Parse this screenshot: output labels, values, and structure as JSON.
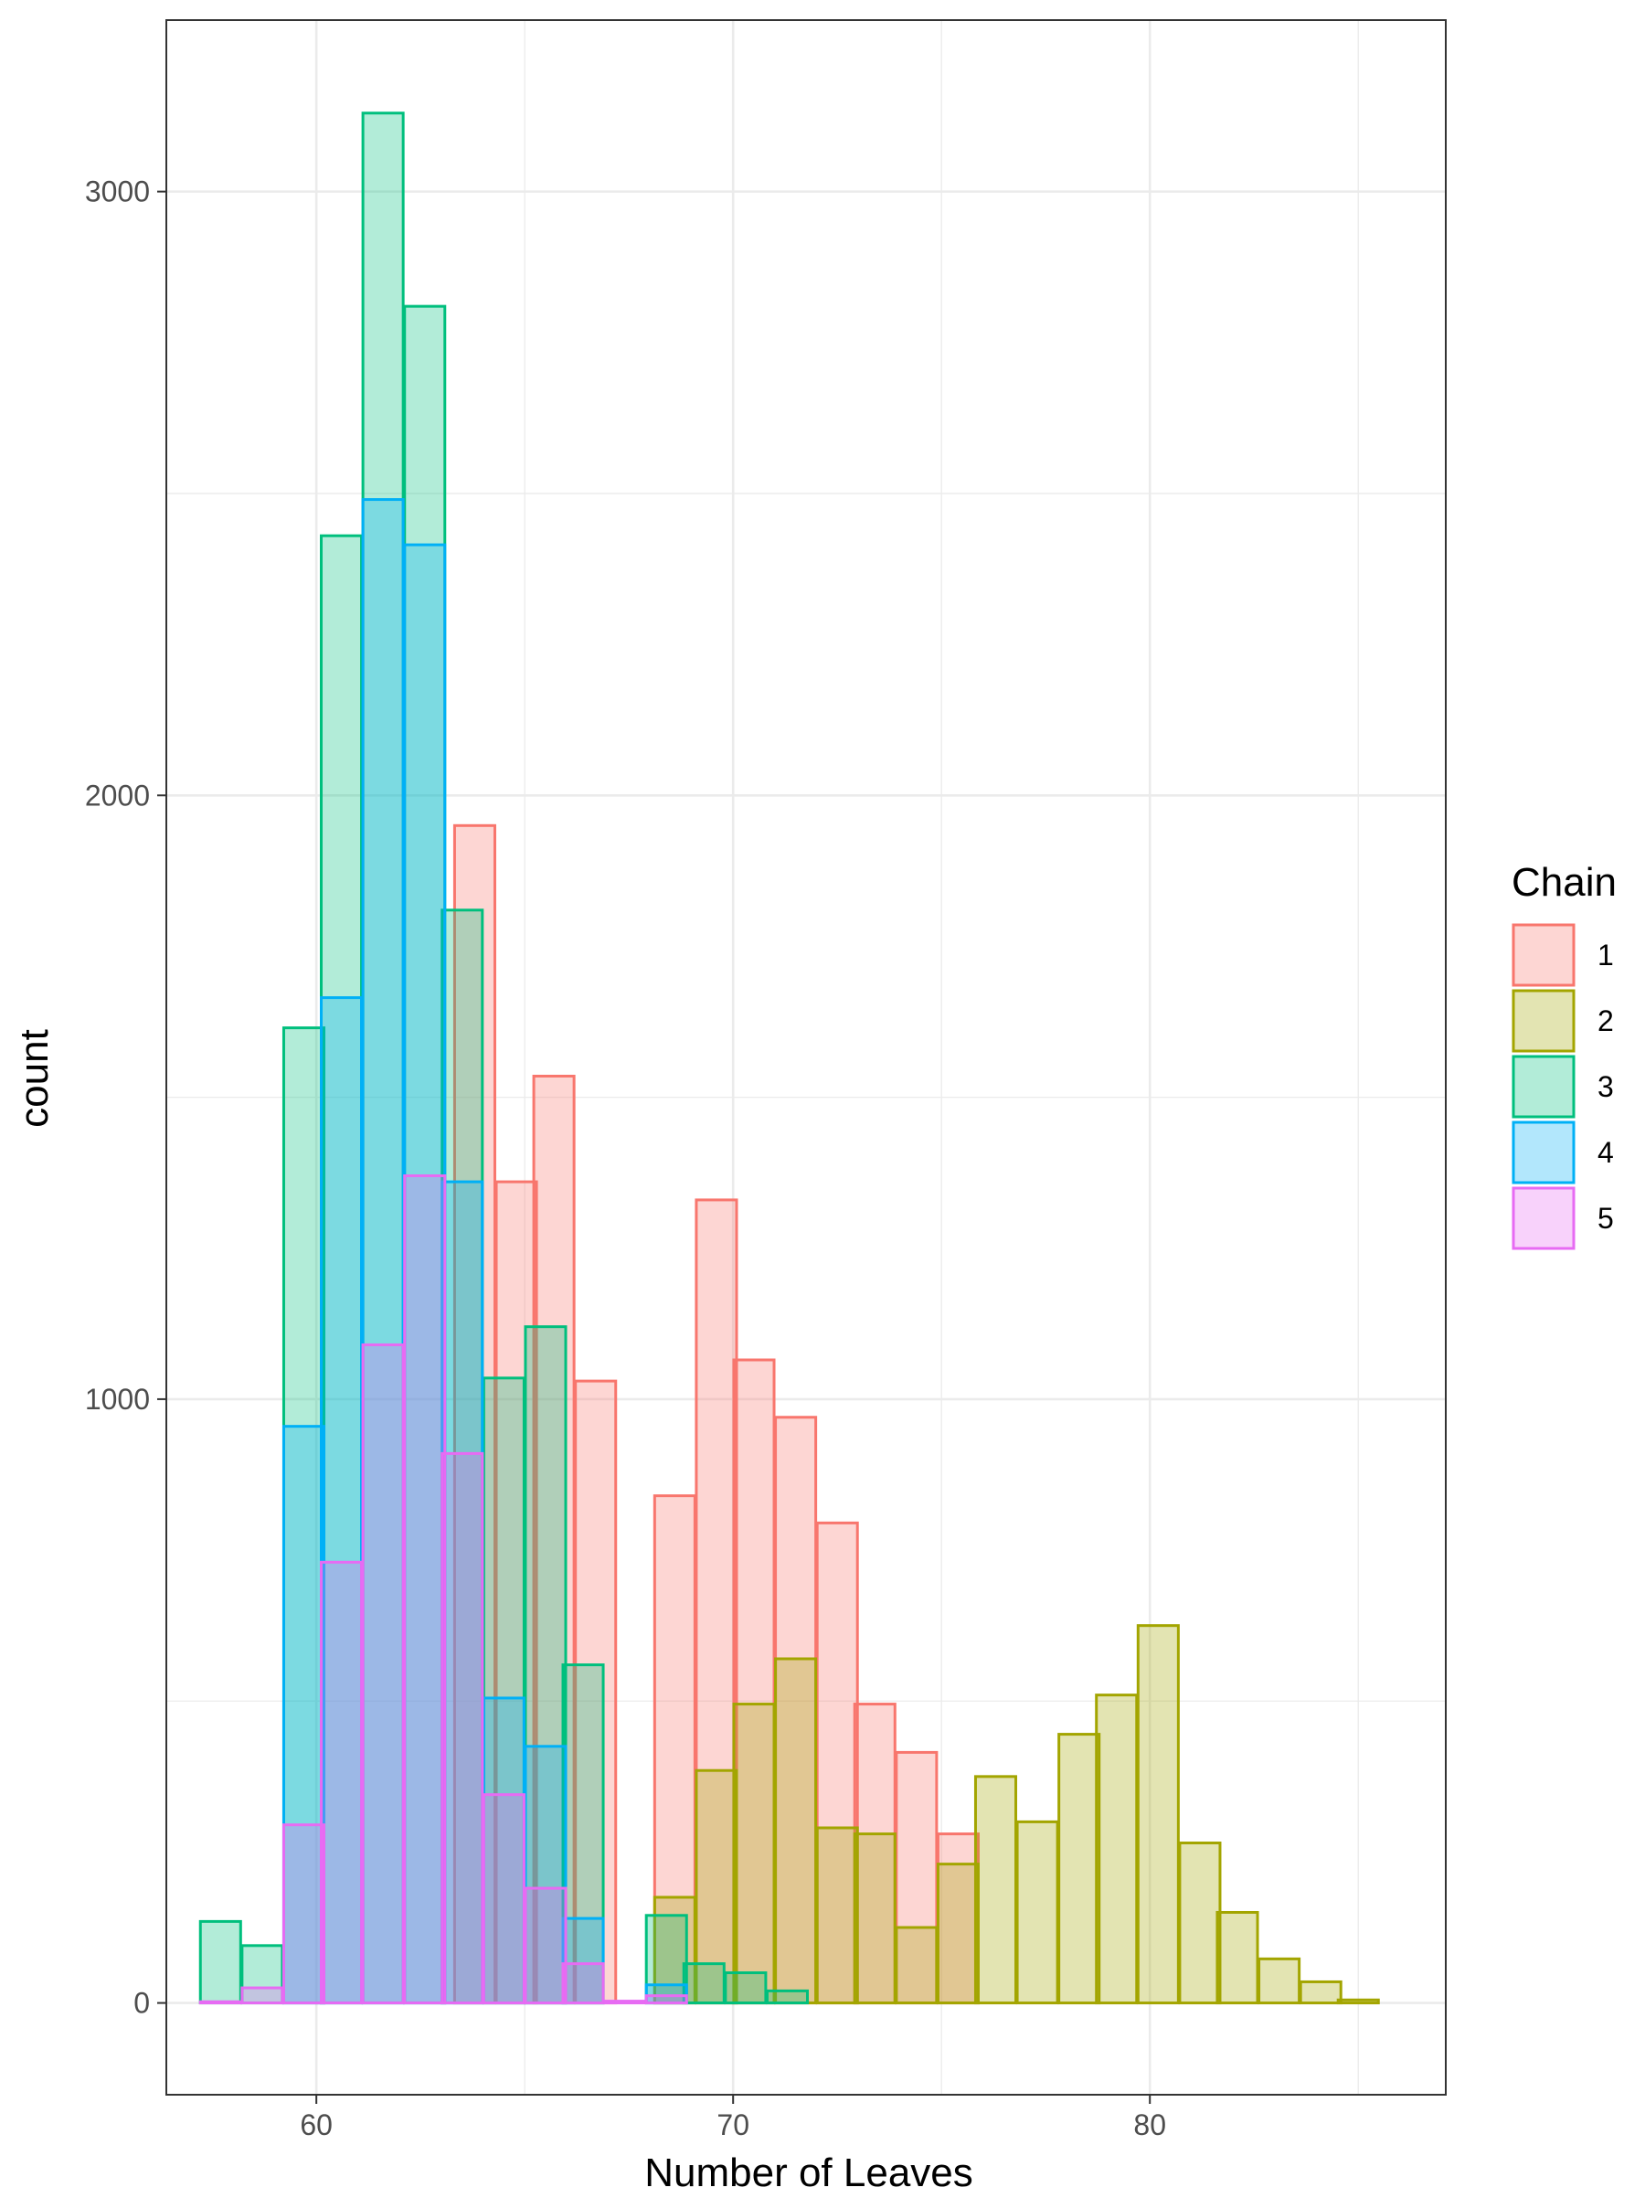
{
  "chart_data": {
    "type": "bar",
    "stacking": "overlapping (position identity, semi-transparent fill)",
    "xlabel": "Number of Leaves",
    "ylabel": "count",
    "legend_title": "Chain",
    "legend_position": "right",
    "grid": true,
    "theme": "bw",
    "bin_width": 0.966,
    "xlim": [
      56.4,
      87.1
    ],
    "ylim": [
      -152,
      3284
    ],
    "x_ticks": [
      60,
      70,
      80
    ],
    "y_ticks": [
      0,
      1000,
      2000,
      3000
    ],
    "series": [
      {
        "name": "1",
        "color": "#F8766D",
        "fill": "rgba(248,118,109,0.3)",
        "bins": [
          {
            "x": 63.8,
            "y": 1950
          },
          {
            "x": 64.8,
            "y": 1360
          },
          {
            "x": 65.7,
            "y": 1535
          },
          {
            "x": 66.7,
            "y": 1030
          },
          {
            "x": 68.6,
            "y": 840
          },
          {
            "x": 69.6,
            "y": 1330
          },
          {
            "x": 70.5,
            "y": 1065
          },
          {
            "x": 71.5,
            "y": 970
          },
          {
            "x": 72.5,
            "y": 795
          },
          {
            "x": 73.4,
            "y": 495
          },
          {
            "x": 74.4,
            "y": 415
          },
          {
            "x": 75.4,
            "y": 280
          }
        ]
      },
      {
        "name": "2",
        "color": "#A3A500",
        "fill": "rgba(163,165,0,0.3)",
        "bins": [
          {
            "x": 68.6,
            "y": 175
          },
          {
            "x": 69.6,
            "y": 385
          },
          {
            "x": 70.5,
            "y": 495
          },
          {
            "x": 71.5,
            "y": 570
          },
          {
            "x": 72.5,
            "y": 290
          },
          {
            "x": 73.4,
            "y": 280
          },
          {
            "x": 74.4,
            "y": 125
          },
          {
            "x": 75.4,
            "y": 230
          },
          {
            "x": 76.3,
            "y": 375
          },
          {
            "x": 77.3,
            "y": 300
          },
          {
            "x": 78.3,
            "y": 445
          },
          {
            "x": 79.2,
            "y": 510
          },
          {
            "x": 80.2,
            "y": 625
          },
          {
            "x": 81.2,
            "y": 265
          },
          {
            "x": 82.1,
            "y": 150
          },
          {
            "x": 83.1,
            "y": 73
          },
          {
            "x": 84.1,
            "y": 35
          },
          {
            "x": 85.0,
            "y": 5
          }
        ]
      },
      {
        "name": "3",
        "color": "#00BF7D",
        "fill": "rgba(0,191,125,0.3)",
        "bins": [
          {
            "x": 57.7,
            "y": 135
          },
          {
            "x": 58.7,
            "y": 95
          },
          {
            "x": 59.7,
            "y": 1615
          },
          {
            "x": 60.6,
            "y": 2430
          },
          {
            "x": 61.6,
            "y": 3130
          },
          {
            "x": 62.6,
            "y": 2810
          },
          {
            "x": 63.5,
            "y": 1810
          },
          {
            "x": 64.5,
            "y": 1035
          },
          {
            "x": 65.5,
            "y": 1120
          },
          {
            "x": 66.4,
            "y": 560
          },
          {
            "x": 68.4,
            "y": 145
          },
          {
            "x": 69.3,
            "y": 65
          },
          {
            "x": 70.3,
            "y": 50
          },
          {
            "x": 71.3,
            "y": 20
          }
        ]
      },
      {
        "name": "4",
        "color": "#00B0F6",
        "fill": "rgba(0,176,246,0.3)",
        "bins": [
          {
            "x": 59.7,
            "y": 955
          },
          {
            "x": 60.6,
            "y": 1665
          },
          {
            "x": 61.6,
            "y": 2490
          },
          {
            "x": 62.6,
            "y": 2415
          },
          {
            "x": 63.5,
            "y": 1360
          },
          {
            "x": 64.5,
            "y": 505
          },
          {
            "x": 65.5,
            "y": 425
          },
          {
            "x": 66.4,
            "y": 140
          },
          {
            "x": 68.4,
            "y": 30
          }
        ]
      },
      {
        "name": "5",
        "color": "#E76BF3",
        "fill": "rgba(231,107,243,0.3)",
        "bins": [
          {
            "x": 57.7,
            "y": 2
          },
          {
            "x": 58.7,
            "y": 25
          },
          {
            "x": 59.7,
            "y": 295
          },
          {
            "x": 60.6,
            "y": 730
          },
          {
            "x": 61.6,
            "y": 1090
          },
          {
            "x": 62.6,
            "y": 1370
          },
          {
            "x": 63.5,
            "y": 910
          },
          {
            "x": 64.5,
            "y": 345
          },
          {
            "x": 65.5,
            "y": 190
          },
          {
            "x": 66.4,
            "y": 65
          },
          {
            "x": 67.4,
            "y": 3
          },
          {
            "x": 68.4,
            "y": 12
          }
        ]
      }
    ]
  }
}
